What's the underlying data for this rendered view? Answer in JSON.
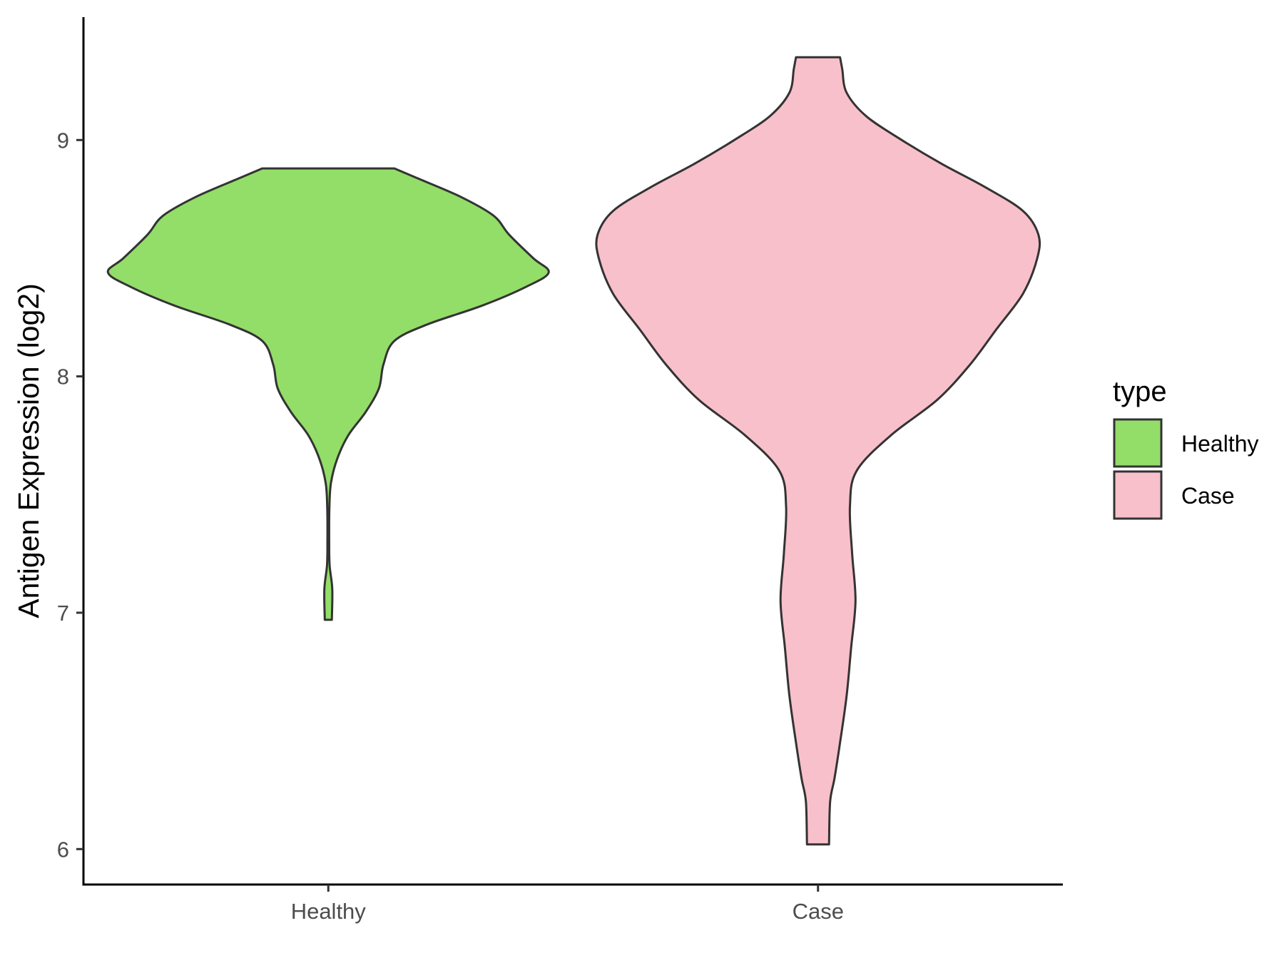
{
  "chart_data": {
    "type": "violin",
    "title": "",
    "xlabel": "",
    "ylabel": "Antigen Expression (log2)",
    "ylim": [
      5.85,
      9.52
    ],
    "yticks": [
      6,
      7,
      8,
      9
    ],
    "categories": [
      "Healthy",
      "Case"
    ],
    "legend": {
      "title": "type",
      "position": "right",
      "entries": [
        "Healthy",
        "Case"
      ]
    },
    "grid": false,
    "series": [
      {
        "name": "Healthy",
        "color": "#93DD69",
        "y_min": 6.97,
        "y_max": 8.88,
        "profile": [
          [
            6.97,
            0.016
          ],
          [
            7.1,
            0.018
          ],
          [
            7.2,
            0.006
          ],
          [
            7.3,
            0.004
          ],
          [
            7.45,
            0.005
          ],
          [
            7.55,
            0.012
          ],
          [
            7.65,
            0.04
          ],
          [
            7.75,
            0.09
          ],
          [
            7.85,
            0.17
          ],
          [
            7.95,
            0.23
          ],
          [
            8.05,
            0.25
          ],
          [
            8.15,
            0.3
          ],
          [
            8.22,
            0.45
          ],
          [
            8.3,
            0.7
          ],
          [
            8.38,
            0.9
          ],
          [
            8.44,
            1.0
          ],
          [
            8.5,
            0.93
          ],
          [
            8.6,
            0.82
          ],
          [
            8.68,
            0.75
          ],
          [
            8.76,
            0.6
          ],
          [
            8.84,
            0.4
          ],
          [
            8.88,
            0.3
          ]
        ]
      },
      {
        "name": "Case",
        "color": "#F8C0CB",
        "y_min": 6.02,
        "y_max": 9.35,
        "profile": [
          [
            6.02,
            0.05
          ],
          [
            6.2,
            0.055
          ],
          [
            6.3,
            0.075
          ],
          [
            6.45,
            0.1
          ],
          [
            6.65,
            0.13
          ],
          [
            6.85,
            0.15
          ],
          [
            7.05,
            0.17
          ],
          [
            7.25,
            0.155
          ],
          [
            7.45,
            0.145
          ],
          [
            7.6,
            0.175
          ],
          [
            7.75,
            0.33
          ],
          [
            7.9,
            0.54
          ],
          [
            8.05,
            0.69
          ],
          [
            8.2,
            0.81
          ],
          [
            8.35,
            0.93
          ],
          [
            8.5,
            0.995
          ],
          [
            8.6,
            1.0
          ],
          [
            8.7,
            0.93
          ],
          [
            8.8,
            0.76
          ],
          [
            8.9,
            0.56
          ],
          [
            9.0,
            0.38
          ],
          [
            9.1,
            0.22
          ],
          [
            9.2,
            0.13
          ],
          [
            9.3,
            0.11
          ],
          [
            9.35,
            0.1
          ]
        ]
      }
    ]
  }
}
